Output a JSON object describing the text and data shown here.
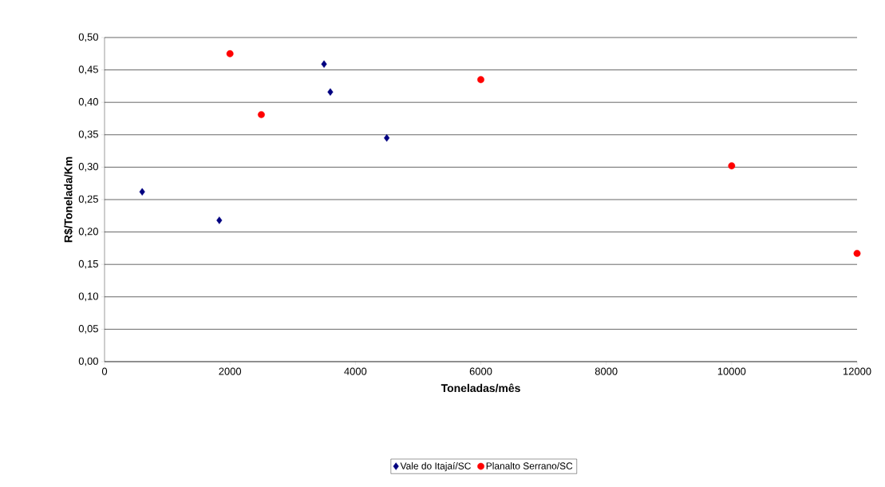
{
  "chart_data": {
    "type": "scatter",
    "xlabel": "Toneladas/mês",
    "ylabel": "R$/Tonelada/Km",
    "xlim": [
      0,
      12000
    ],
    "xticks": [
      0,
      2000,
      4000,
      6000,
      8000,
      10000,
      12000
    ],
    "ylim": [
      0,
      0.5
    ],
    "yticks": [
      {
        "value": 0,
        "label": "0,00"
      },
      {
        "value": 0.05,
        "label": "0,05"
      },
      {
        "value": 0.1,
        "label": "0,10"
      },
      {
        "value": 0.15,
        "label": "0,15"
      },
      {
        "value": 0.2,
        "label": "0,20"
      },
      {
        "value": 0.25,
        "label": "0,25"
      },
      {
        "value": 0.3,
        "label": "0,30"
      },
      {
        "value": 0.35,
        "label": "0,35"
      },
      {
        "value": 0.4,
        "label": "0,40"
      },
      {
        "value": 0.45,
        "label": "0,45"
      },
      {
        "value": 0.5,
        "label": "0,50"
      }
    ],
    "grid": "y",
    "legend": "bottom",
    "series": [
      {
        "name": "Vale do Itajaí/SC",
        "color": "#000080",
        "marker": "diamond",
        "x": [
          600,
          1830,
          3500,
          3600,
          4500
        ],
        "values": [
          0.262,
          0.218,
          0.459,
          0.416,
          0.345
        ]
      },
      {
        "name": "Planalto Serrano/SC",
        "color": "#ff0000",
        "marker": "circle",
        "x": [
          2000,
          2500,
          6000,
          10000,
          12000
        ],
        "values": [
          0.475,
          0.381,
          0.435,
          0.302,
          0.167
        ]
      }
    ]
  }
}
